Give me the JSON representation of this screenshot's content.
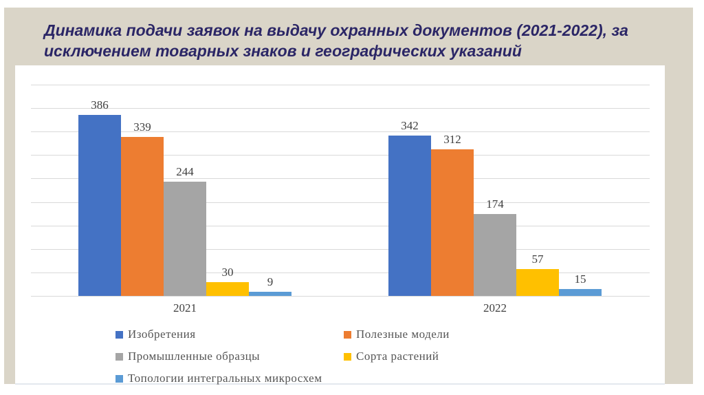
{
  "title": {
    "text": "Динамика подачи заявок на выдачу охранных документов (2021-2022), за исключением товарных знаков и географических указаний",
    "color": "#2B2666"
  },
  "background": {
    "backdrop_color": "#DAD5C8",
    "panel_color": "#FFFFFF",
    "gridline_color": "#D9D9D9"
  },
  "chart_data": {
    "type": "bar",
    "title": "",
    "xlabel": "",
    "ylabel": "",
    "categories": [
      "2021",
      "2022"
    ],
    "series": [
      {
        "name": "Изобретения",
        "color": "#4472C4",
        "values": [
          386,
          342
        ]
      },
      {
        "name": "Полезные модели",
        "color": "#ED7D31",
        "values": [
          339,
          312
        ]
      },
      {
        "name": "Промышленные образцы",
        "color": "#A5A5A5",
        "values": [
          244,
          174
        ]
      },
      {
        "name": "Сорта растений",
        "color": "#FFC000",
        "values": [
          30,
          57
        ]
      },
      {
        "name": "Топологии интегральных микросхем",
        "color": "#5B9BD5",
        "values": [
          9,
          15
        ]
      }
    ],
    "ylim": [
      0,
      450
    ],
    "grid_step": 50,
    "grid": true,
    "data_labels": true,
    "legend_position": "bottom",
    "y_axis_labels_visible": false
  }
}
